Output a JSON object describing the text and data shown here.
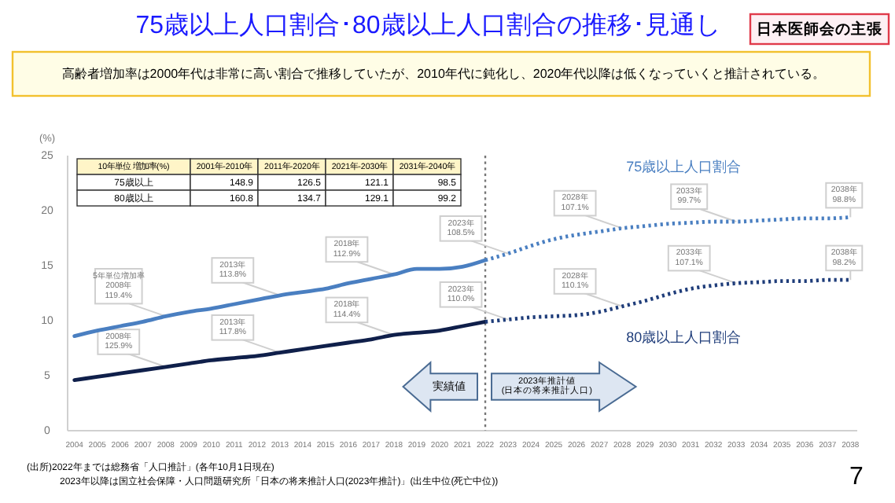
{
  "chart_data": {
    "type": "line",
    "title": "75歳以上人口割合･80歳以上人口割合の推移･見通し",
    "subtitle": "高齢者増加率は2000年代は非常に高い割合で推移していたが、2010年代に鈍化し、2020年代以降は低くなっていくと推計されている。",
    "ylabel": "(%)",
    "xlim": [
      2003.7,
      2038.3
    ],
    "xticks": [
      2004,
      2005,
      2006,
      2007,
      2008,
      2009,
      2010,
      2011,
      2012,
      2013,
      2014,
      2015,
      2016,
      2017,
      2018,
      2019,
      2020,
      2021,
      2022,
      2023,
      2024,
      2025,
      2026,
      2027,
      2028,
      2029,
      2030,
      2031,
      2032,
      2033,
      2034,
      2035,
      2036,
      2037,
      2038
    ],
    "ylim": [
      0,
      25
    ],
    "yticks": [
      0,
      5,
      10,
      15,
      20,
      25
    ],
    "series": [
      {
        "color": "#4a7fc1",
        "line_style": "solid",
        "x": [
          2004,
          2005,
          2006,
          2007,
          2008,
          2009,
          2010,
          2011,
          2012,
          2013,
          2014,
          2015,
          2016,
          2017,
          2018,
          2019,
          2020,
          2021,
          2022
        ],
        "values": [
          8.6,
          9.1,
          9.5,
          9.9,
          10.4,
          10.8,
          11.1,
          11.5,
          11.9,
          12.3,
          12.6,
          12.9,
          13.4,
          13.8,
          14.2,
          14.7,
          14.7,
          14.9,
          15.5
        ]
      },
      {
        "name": "75歳以上人口割合",
        "color": "#4a7fc1",
        "line_style": "dotted",
        "x": [
          2022,
          2023,
          2024,
          2025,
          2026,
          2027,
          2028,
          2029,
          2030,
          2031,
          2032,
          2033,
          2034,
          2035,
          2036,
          2037,
          2038
        ],
        "values": [
          15.5,
          16.1,
          16.8,
          17.4,
          17.8,
          18.1,
          18.4,
          18.6,
          18.8,
          18.9,
          19.0,
          19.0,
          19.1,
          19.2,
          19.3,
          19.3,
          19.4
        ]
      },
      {
        "color": "#0f1f4a",
        "line_style": "solid",
        "x": [
          2004,
          2005,
          2006,
          2007,
          2008,
          2009,
          2010,
          2011,
          2012,
          2013,
          2014,
          2015,
          2016,
          2017,
          2018,
          2019,
          2020,
          2021,
          2022
        ],
        "values": [
          4.6,
          4.9,
          5.2,
          5.5,
          5.8,
          6.1,
          6.4,
          6.6,
          6.8,
          7.1,
          7.4,
          7.7,
          8.0,
          8.3,
          8.7,
          8.9,
          9.1,
          9.5,
          9.9
        ]
      },
      {
        "name": "80歳以上人口割合",
        "color": "#1f3d7a",
        "line_style": "dotted",
        "x": [
          2022,
          2023,
          2024,
          2025,
          2026,
          2027,
          2028,
          2029,
          2030,
          2031,
          2032,
          2033,
          2034,
          2035,
          2036,
          2037,
          2038
        ],
        "values": [
          9.9,
          10.1,
          10.3,
          10.4,
          10.5,
          10.8,
          11.3,
          11.8,
          12.4,
          12.9,
          13.2,
          13.4,
          13.5,
          13.6,
          13.6,
          13.7,
          13.7
        ]
      }
    ],
    "ref_lines": [
      {
        "axis": "x",
        "value": 2022,
        "color": "#777777",
        "line_style": "dotted"
      }
    ],
    "annotations": [
      "日本医師会の主張",
      "10年単位 増加率(%)",
      "2001年-2010年",
      "2011年-2020年",
      "2021年-2030年",
      "2031年-2040年",
      "75歳以上",
      "148.9",
      "126.5",
      "121.1",
      "98.5",
      "80歳以上",
      "160.8",
      "134.7",
      "129.1",
      "99.2",
      "実績値",
      "2023年推計値\n(日本の将来推計人口)",
      "(出所)2022年までは総務省「人口推計」(各年10月1日現在)",
      "2023年以降は国立社会保障・人口問題研究所「日本の将来推計人口(2023年推計)」(出生中位(死亡中位))",
      "7",
      {
        "text": "5年単位増加率\n2008年\n119.4%",
        "x": 2008,
        "y": 10.4
      },
      {
        "text": "2013年\n113.8%",
        "x": 2013,
        "y": 12.3
      },
      {
        "text": "2018年\n112.9%",
        "x": 2018,
        "y": 14.2
      },
      {
        "text": "2023年\n108.5%",
        "x": 2023,
        "y": 16.1
      },
      {
        "text": "2028年\n107.1%",
        "x": 2028,
        "y": 18.4
      },
      {
        "text": "2033年\n99.7%",
        "x": 2033,
        "y": 19.0
      },
      {
        "text": "2038年\n98.8%",
        "x": 2038,
        "y": 19.4
      },
      {
        "text": "2008年\n125.9%",
        "x": 2008,
        "y": 5.8
      },
      {
        "text": "2013年\n117.8%",
        "x": 2013,
        "y": 7.1
      },
      {
        "text": "2018年\n114.4%",
        "x": 2018,
        "y": 8.7
      },
      {
        "text": "2023年\n110.0%",
        "x": 2023,
        "y": 10.1
      },
      {
        "text": "2028年\n110.1%",
        "x": 2028,
        "y": 11.3
      },
      {
        "text": "2033年\n107.1%",
        "x": 2033,
        "y": 13.4
      },
      {
        "text": "2038年\n98.2%",
        "x": 2038,
        "y": 13.7
      }
    ]
  }
}
